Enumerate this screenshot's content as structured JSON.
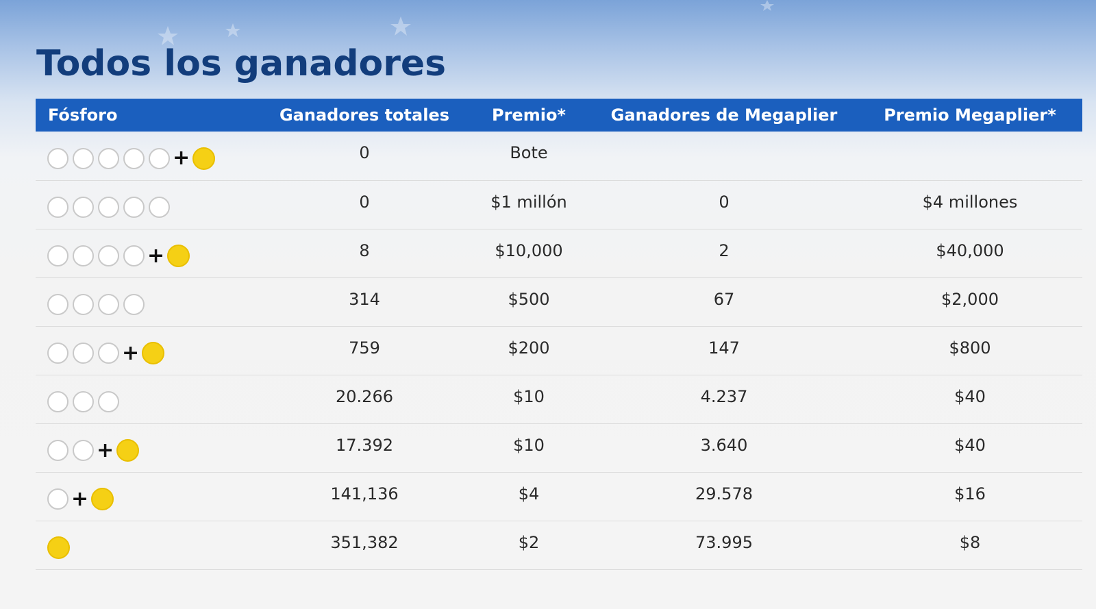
{
  "page": {
    "title": "Todos los ganadores"
  },
  "table": {
    "headers": {
      "match": "Fósforo",
      "total_winners": "Ganadores totales",
      "prize": "Premio*",
      "megaplier_winners": "Ganadores de Megaplier",
      "megaplier_prize": "Premio Megaplier*"
    },
    "rows": [
      {
        "white_balls": 5,
        "megaball": true,
        "total_winners": "0",
        "prize": "Bote",
        "megaplier_winners": "",
        "megaplier_prize": ""
      },
      {
        "white_balls": 5,
        "megaball": false,
        "total_winners": "0",
        "prize": "$1 millón",
        "megaplier_winners": "0",
        "megaplier_prize": "$4 millones"
      },
      {
        "white_balls": 4,
        "megaball": true,
        "total_winners": "8",
        "prize": "$10,000",
        "megaplier_winners": "2",
        "megaplier_prize": "$40,000"
      },
      {
        "white_balls": 4,
        "megaball": false,
        "total_winners": "314",
        "prize": "$500",
        "megaplier_winners": "67",
        "megaplier_prize": "$2,000"
      },
      {
        "white_balls": 3,
        "megaball": true,
        "total_winners": "759",
        "prize": "$200",
        "megaplier_winners": "147",
        "megaplier_prize": "$800"
      },
      {
        "white_balls": 3,
        "megaball": false,
        "total_winners": "20.266",
        "prize": "$10",
        "megaplier_winners": "4.237",
        "megaplier_prize": "$40"
      },
      {
        "white_balls": 2,
        "megaball": true,
        "total_winners": "17.392",
        "prize": "$10",
        "megaplier_winners": "3.640",
        "megaplier_prize": "$40"
      },
      {
        "white_balls": 1,
        "megaball": true,
        "total_winners": "141,136",
        "prize": "$4",
        "megaplier_winners": "29.578",
        "megaplier_prize": "$16"
      },
      {
        "white_balls": 0,
        "megaball": true,
        "total_winners": "351,382",
        "prize": "$2",
        "megaplier_winners": "73.995",
        "megaplier_prize": "$8"
      }
    ]
  },
  "colors": {
    "header_bg": "#1b5fbe",
    "title": "#123d7c",
    "megaball": "#f5d015"
  },
  "icons": {
    "white_ball": "white-ball-icon",
    "megaball": "megaball-icon",
    "plus": "plus-icon"
  }
}
